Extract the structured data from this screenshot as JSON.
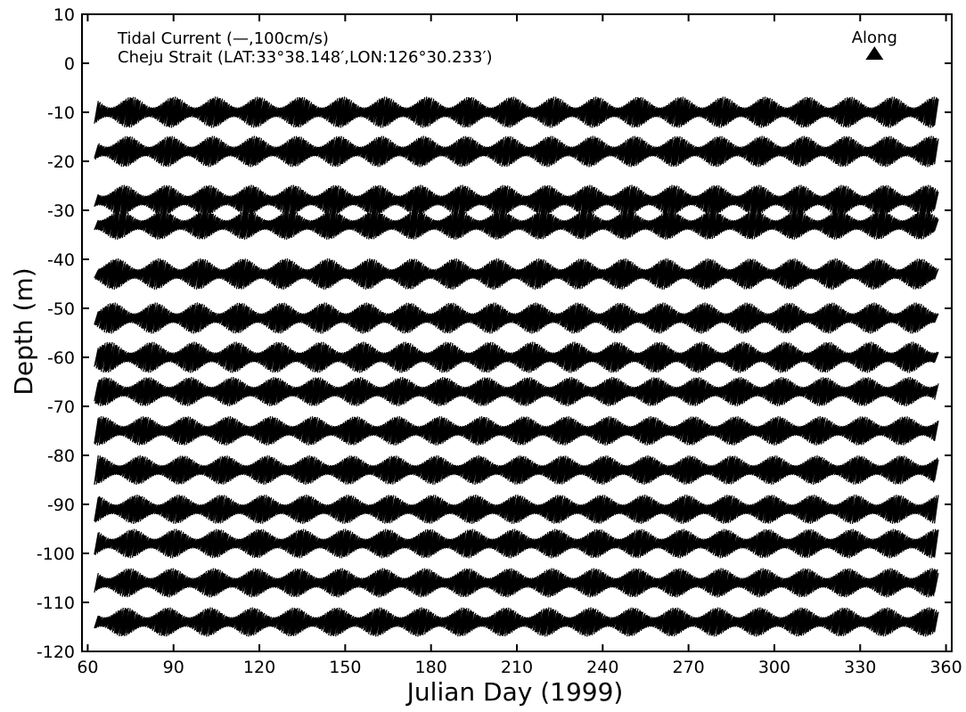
{
  "chart_data": {
    "type": "line",
    "title": "",
    "xlabel": "Julian Day (1999)",
    "ylabel": "Depth (m)",
    "xlim": [
      58,
      362
    ],
    "ylim": [
      -120,
      10
    ],
    "x_ticks": [
      60,
      90,
      120,
      150,
      180,
      210,
      240,
      270,
      300,
      330,
      360
    ],
    "y_ticks": [
      10,
      0,
      -10,
      -20,
      -30,
      -40,
      -50,
      -60,
      -70,
      -80,
      -90,
      -100,
      -110,
      -120
    ],
    "annotations": [
      "Tidal Current (—,100cm/s)",
      "Cheju Strait (LAT:33°38.148′,LON:126°30.233′)"
    ],
    "direction_label": "Along",
    "direction_marker_x": 335,
    "direction_marker_y": 2,
    "series": [
      {
        "depth": -10,
        "x_start": 63,
        "x_end": 357,
        "spring_amp": 3.2,
        "neap_amp": 1.0,
        "period_days": 14.77
      },
      {
        "depth": -18,
        "x_start": 63,
        "x_end": 357,
        "spring_amp": 3.2,
        "neap_amp": 1.0,
        "period_days": 14.77
      },
      {
        "depth": -28,
        "x_start": 63,
        "x_end": 357,
        "spring_amp": 3.2,
        "neap_amp": 1.0,
        "period_days": 14.77
      },
      {
        "depth": -33,
        "x_start": 63,
        "x_end": 357,
        "spring_amp": 3.0,
        "neap_amp": 1.0,
        "period_days": 14.77
      },
      {
        "depth": -43,
        "x_start": 63,
        "x_end": 357,
        "spring_amp": 3.2,
        "neap_amp": 1.0,
        "period_days": 14.77
      },
      {
        "depth": -52,
        "x_start": 63,
        "x_end": 357,
        "spring_amp": 3.2,
        "neap_amp": 1.0,
        "period_days": 14.77
      },
      {
        "depth": -60,
        "x_start": 63,
        "x_end": 357,
        "spring_amp": 3.2,
        "neap_amp": 1.0,
        "period_days": 14.77
      },
      {
        "depth": -67,
        "x_start": 63,
        "x_end": 357,
        "spring_amp": 3.0,
        "neap_amp": 1.0,
        "period_days": 14.77
      },
      {
        "depth": -75,
        "x_start": 63,
        "x_end": 357,
        "spring_amp": 3.0,
        "neap_amp": 1.0,
        "period_days": 14.77
      },
      {
        "depth": -83,
        "x_start": 63,
        "x_end": 357,
        "spring_amp": 3.0,
        "neap_amp": 1.0,
        "period_days": 14.77
      },
      {
        "depth": -91,
        "x_start": 63,
        "x_end": 357,
        "spring_amp": 3.0,
        "neap_amp": 1.0,
        "period_days": 14.77
      },
      {
        "depth": -98,
        "x_start": 63,
        "x_end": 357,
        "spring_amp": 3.0,
        "neap_amp": 1.0,
        "period_days": 14.77
      },
      {
        "depth": -106,
        "x_start": 63,
        "x_end": 357,
        "spring_amp": 3.0,
        "neap_amp": 1.0,
        "period_days": 14.77
      },
      {
        "depth": -114,
        "x_start": 63,
        "x_end": 357,
        "spring_amp": 3.0,
        "neap_amp": 1.0,
        "period_days": 14.77
      }
    ],
    "grid": false,
    "line_color": "#000000"
  }
}
